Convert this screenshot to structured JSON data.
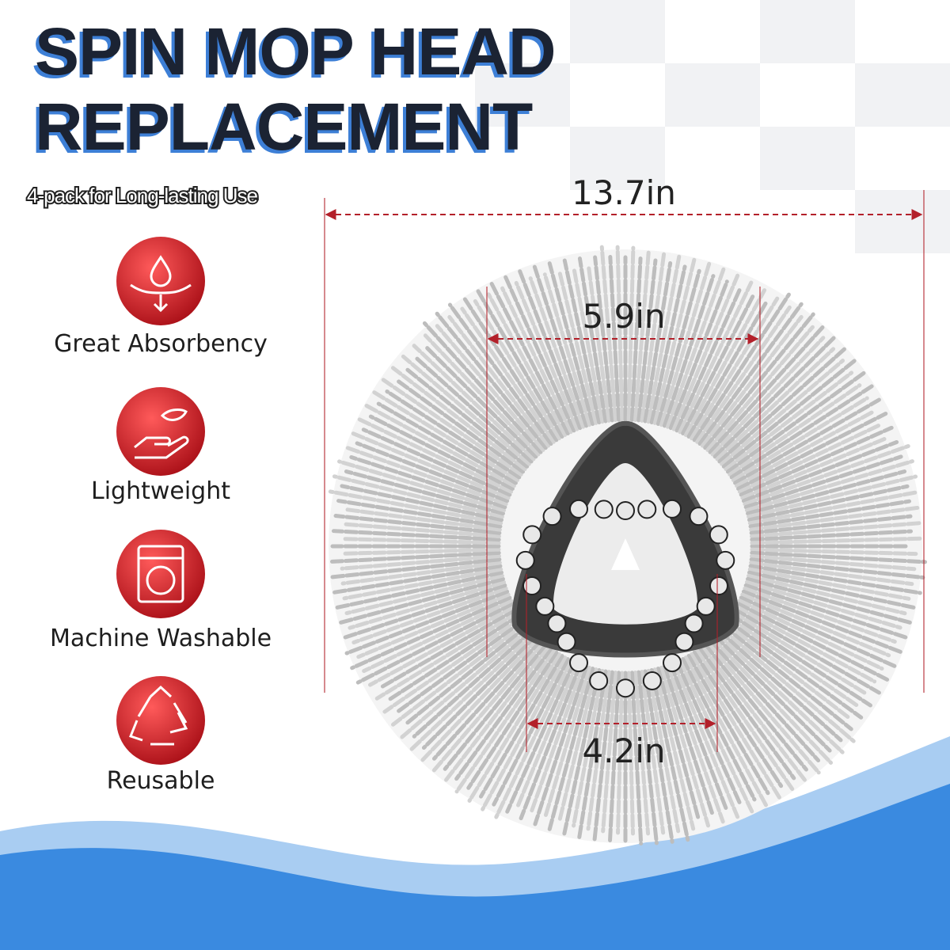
{
  "header": {
    "title_lines": [
      "SPIN MOP HEAD",
      "REPLACEMENT"
    ],
    "subtitle": "4-pack for Long-lasting Use"
  },
  "features": [
    {
      "label": "Great Absorbency"
    },
    {
      "label": "Lightweight"
    },
    {
      "label": "Machine Washable"
    },
    {
      "label": "Reusable"
    }
  ],
  "dimensions": {
    "outer": "13.7in",
    "inner": "5.9in",
    "base": "4.2in"
  }
}
